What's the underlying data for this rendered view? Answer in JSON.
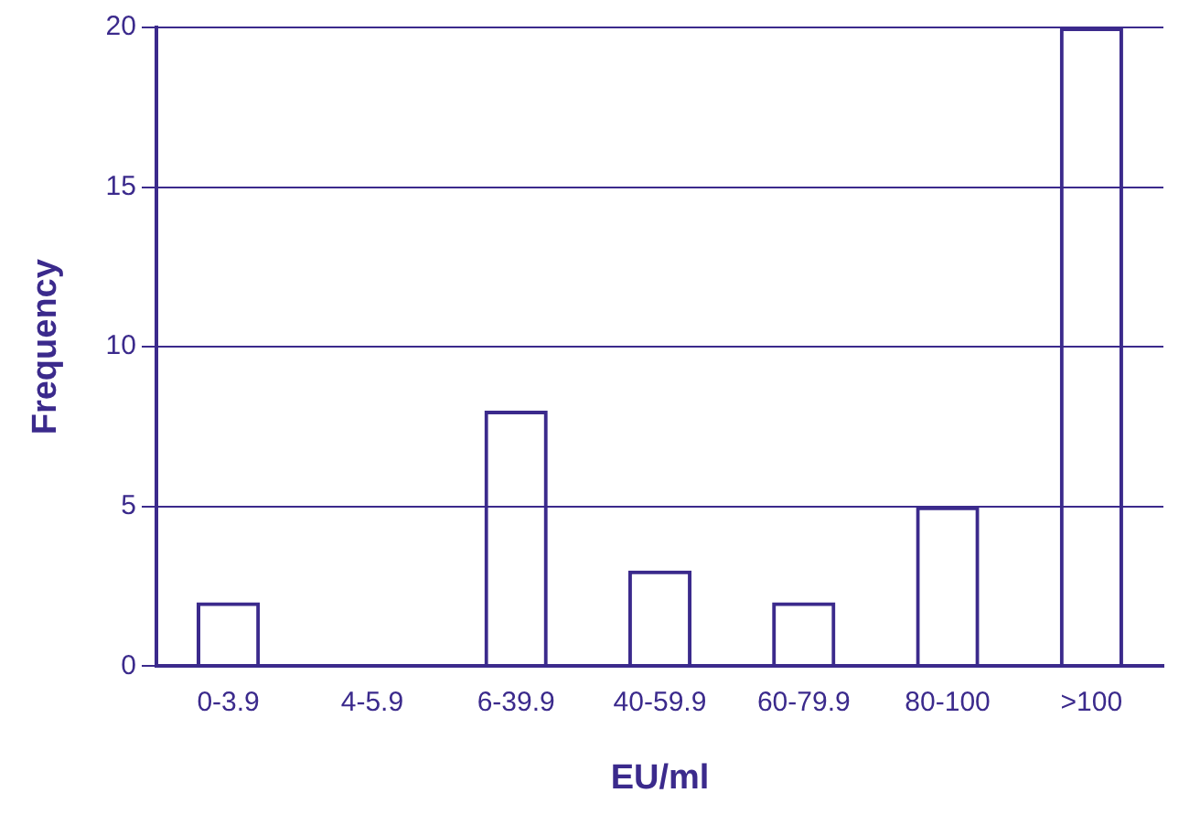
{
  "chart_data": {
    "type": "bar",
    "xlabel": "EU/ml",
    "ylabel": "Frequency",
    "categories": [
      "0-3.9",
      "4-5.9",
      "6-39.9",
      "40-59.9",
      "60-79.9",
      "80-100",
      ">100"
    ],
    "series": [
      {
        "color": "#3b2a8c",
        "values": [
          2,
          0,
          8,
          3,
          2,
          5,
          20
        ]
      }
    ],
    "ylim": [
      0,
      20
    ],
    "yticks": [
      0,
      5,
      10,
      15,
      20
    ],
    "grid": "y",
    "legend": false
  }
}
